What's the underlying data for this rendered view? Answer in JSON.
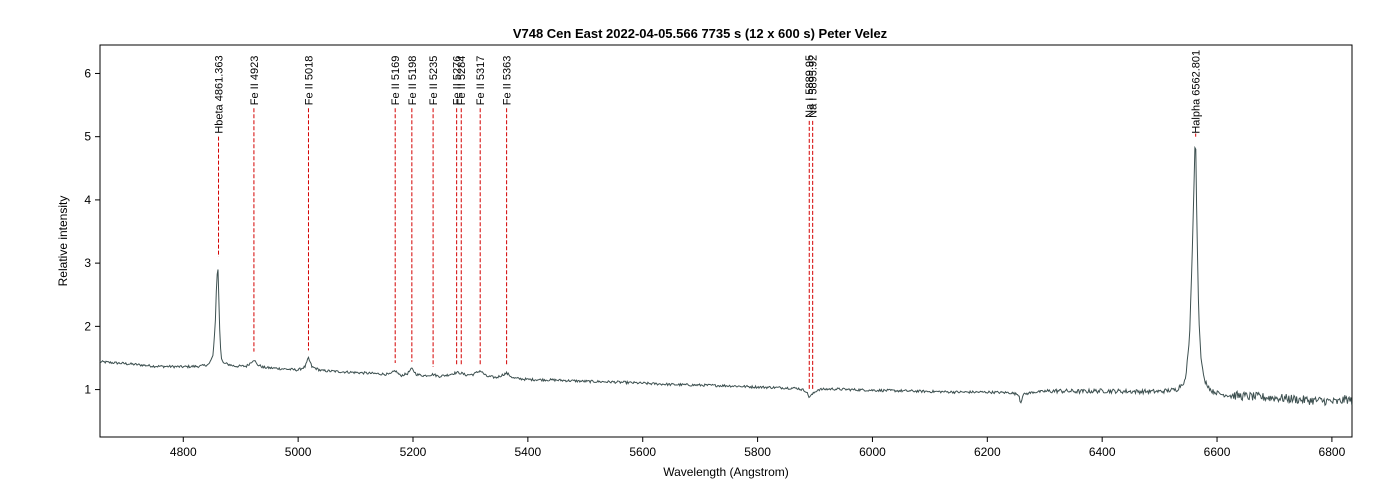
{
  "chart_data": {
    "type": "line",
    "title": "V748 Cen East   2022-04-05.566   7735 s (12 x 600 s)   Peter Velez",
    "xlabel": "Wavelength (Angstrom)",
    "ylabel": "Relative intensity",
    "xlim": [
      4655,
      6835
    ],
    "ylim": [
      0.25,
      6.45
    ],
    "grid": false,
    "legend": "none",
    "xticks": [
      4800,
      5000,
      5200,
      5400,
      5600,
      5800,
      6000,
      6200,
      6400,
      6600,
      6800
    ],
    "yticks": [
      1,
      2,
      3,
      4,
      5,
      6
    ],
    "line_color": "#3d5050",
    "marker_color": "#d40000",
    "series": [
      {
        "x": [
          4655,
          4700,
          4750,
          4800,
          4830,
          4845,
          4852,
          4856,
          4858,
          4860,
          4861,
          4862,
          4864,
          4866,
          4870,
          4878,
          4890,
          4910,
          4918,
          4923,
          4928,
          4940,
          4970,
          5000,
          5012,
          5018,
          5024,
          5040,
          5080,
          5120,
          5160,
          5169,
          5178,
          5190,
          5198,
          5206,
          5220,
          5235,
          5245,
          5260,
          5276,
          5284,
          5292,
          5305,
          5317,
          5328,
          5345,
          5363,
          5375,
          5400,
          5450,
          5500,
          5550,
          5600,
          5650,
          5700,
          5750,
          5800,
          5840,
          5870,
          5884,
          5890,
          5896,
          5905,
          5930,
          5960,
          6000,
          6050,
          6100,
          6150,
          6200,
          6240,
          6255,
          6258,
          6262,
          6280,
          6320,
          6360,
          6400,
          6450,
          6500,
          6530,
          6545,
          6552,
          6557,
          6560,
          6562,
          6563,
          6565,
          6568,
          6572,
          6578,
          6590,
          6610,
          6640,
          6680,
          6720,
          6760,
          6790,
          6810,
          6825,
          6835
        ],
        "y": [
          1.44,
          1.41,
          1.37,
          1.36,
          1.37,
          1.4,
          1.55,
          2.1,
          2.7,
          2.95,
          2.85,
          2.4,
          1.8,
          1.5,
          1.42,
          1.4,
          1.37,
          1.37,
          1.43,
          1.48,
          1.4,
          1.35,
          1.33,
          1.31,
          1.36,
          1.5,
          1.36,
          1.3,
          1.28,
          1.26,
          1.24,
          1.3,
          1.22,
          1.25,
          1.33,
          1.24,
          1.22,
          1.24,
          1.21,
          1.23,
          1.27,
          1.26,
          1.23,
          1.24,
          1.3,
          1.21,
          1.19,
          1.26,
          1.18,
          1.16,
          1.15,
          1.13,
          1.12,
          1.1,
          1.08,
          1.07,
          1.06,
          1.04,
          1.03,
          1.02,
          0.98,
          0.88,
          0.93,
          1.0,
          1.01,
          1.0,
          0.99,
          0.98,
          0.97,
          0.96,
          0.96,
          0.95,
          0.92,
          0.78,
          0.92,
          0.96,
          0.98,
          0.97,
          0.98,
          0.97,
          0.97,
          1.0,
          1.15,
          1.8,
          3.2,
          4.3,
          5.0,
          4.8,
          3.6,
          2.2,
          1.5,
          1.15,
          0.98,
          0.92,
          0.9,
          0.88,
          0.86,
          0.83,
          0.82,
          0.8,
          0.85,
          0.82
        ]
      }
    ],
    "annotations": [
      {
        "label": "Hbeta 4861.363",
        "x": 4861.363,
        "y_bottom": 3.1,
        "y_top": 5.0
      },
      {
        "label": "Fe II 4923",
        "x": 4923,
        "y_bottom": 1.6,
        "y_top": 5.45
      },
      {
        "label": "Fe II 5018",
        "x": 5018,
        "y_bottom": 1.62,
        "y_top": 5.45
      },
      {
        "label": "Fe II 5169",
        "x": 5169,
        "y_bottom": 1.42,
        "y_top": 5.45
      },
      {
        "label": "Fe II 5198",
        "x": 5198,
        "y_bottom": 1.44,
        "y_top": 5.45
      },
      {
        "label": "Fe II 5235",
        "x": 5235,
        "y_bottom": 1.36,
        "y_top": 5.45
      },
      {
        "label": "Fe II 5276",
        "x": 5276,
        "y_bottom": 1.38,
        "y_top": 5.45
      },
      {
        "label": "Fe II 5284",
        "x": 5284,
        "y_bottom": 1.38,
        "y_top": 5.45
      },
      {
        "label": "Fe II 5317",
        "x": 5317,
        "y_bottom": 1.4,
        "y_top": 5.45
      },
      {
        "label": "Fe II 5363",
        "x": 5363,
        "y_bottom": 1.38,
        "y_top": 5.45
      },
      {
        "label": "Na I 5889.95",
        "x": 5889.95,
        "y_bottom": 1.0,
        "y_top": 5.25
      },
      {
        "label": "Na I 5895.92",
        "x": 5895.92,
        "y_bottom": 1.0,
        "y_top": 5.25
      },
      {
        "label": "Halpha 6562.801",
        "x": 6562.801,
        "y_bottom": 5.05,
        "y_top": 5.0
      }
    ]
  }
}
